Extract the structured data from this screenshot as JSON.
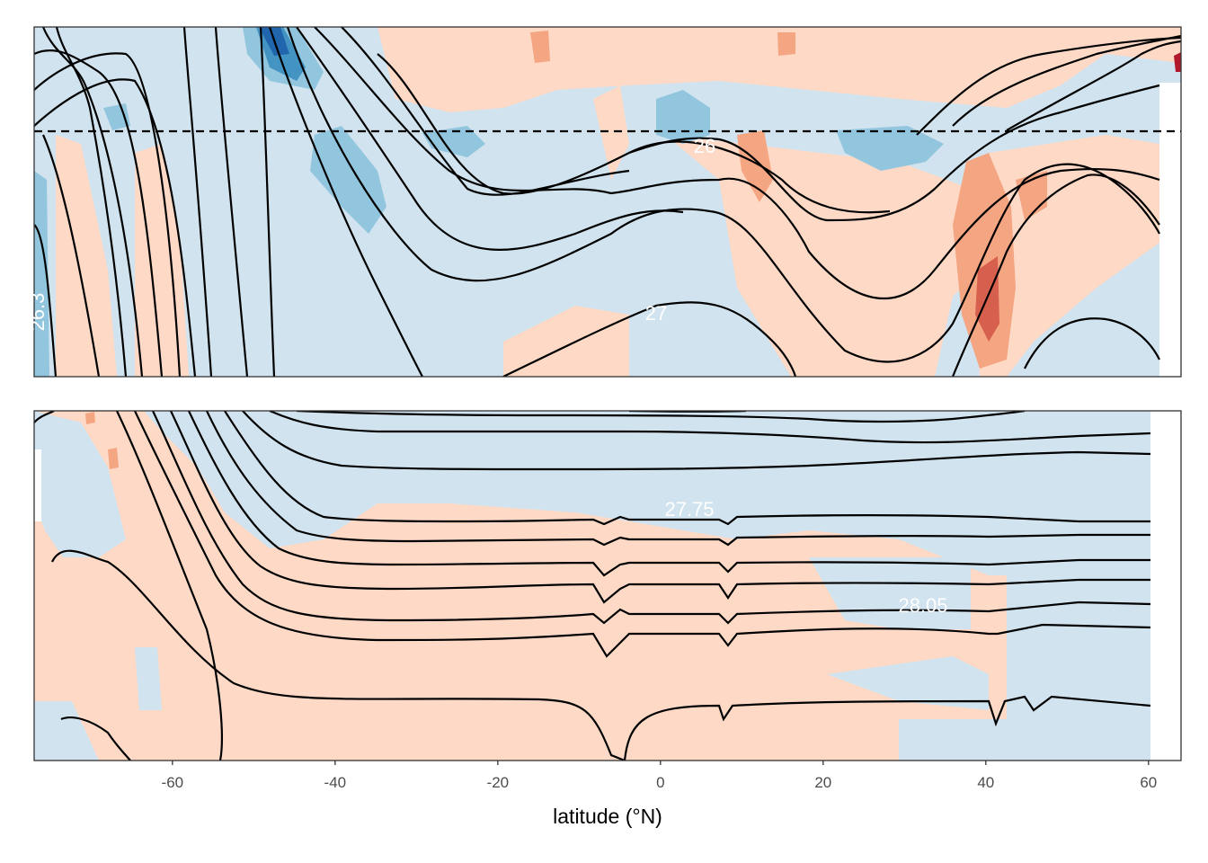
{
  "chart_data": {
    "type": "heatmap",
    "xlabel": "latitude (°N)",
    "x_ticks": [
      -60,
      -40,
      -20,
      0,
      20,
      40,
      60
    ],
    "x_tick_labels": [
      "-60",
      "-40",
      "-20",
      "0",
      "20",
      "40",
      "60"
    ],
    "xlim": [
      -77,
      64
    ],
    "panels": [
      {
        "panel": "upper",
        "fill": "diverging blue-white-red anomaly field, predominantly light blue and light orange",
        "dashed_reference_line": true,
        "contour_labels": [
          {
            "text": "26",
            "lat": 5
          },
          {
            "text": "27",
            "lat": -1
          },
          {
            "text": "26.3",
            "lat": -76
          }
        ]
      },
      {
        "panel": "lower",
        "fill": "diverging blue-white-red anomaly field, predominantly light blue and light orange",
        "dashed_reference_line": false,
        "contour_labels": [
          {
            "text": "27.75",
            "lat": 3
          },
          {
            "text": "28.05",
            "lat": 32
          }
        ]
      }
    ]
  },
  "colors": {
    "light_blue": "#d0e3ef",
    "mid_blue": "#92c5de",
    "dark_blue": "#4393c3",
    "deep_blue": "#2166ac",
    "light_red": "#fdd9c6",
    "mid_red": "#f4a582",
    "dark_red": "#d6604d",
    "deep_red": "#b2182b",
    "contour": "#000000",
    "frame": "#333333"
  }
}
